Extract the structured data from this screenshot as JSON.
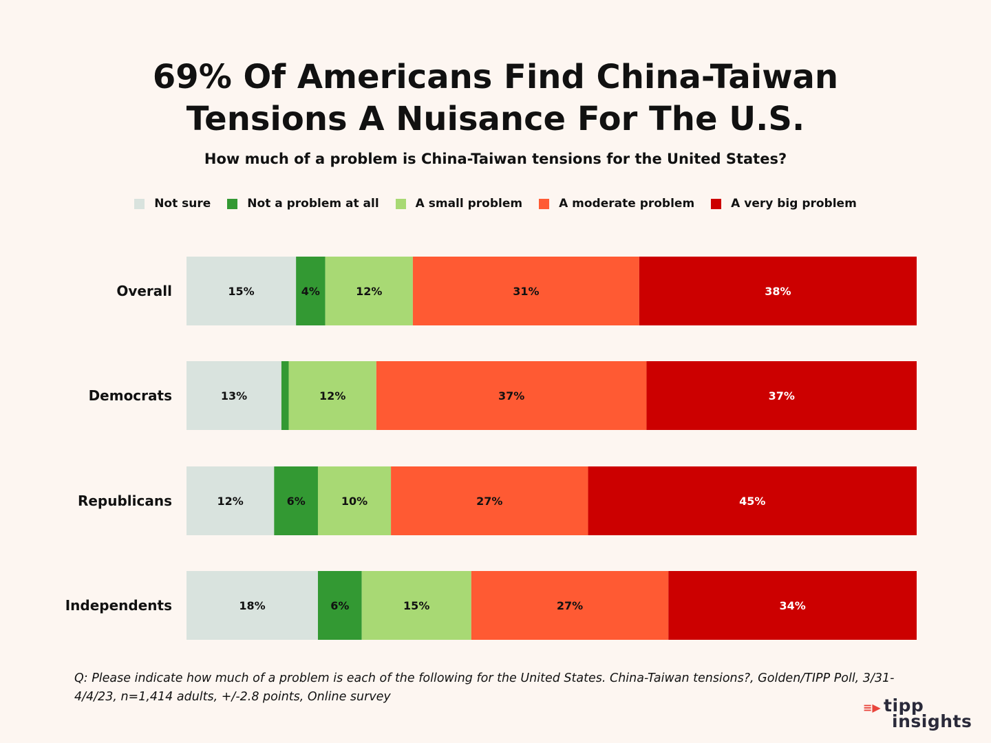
{
  "title": "69% Of Americans Find China-Taiwan Tensions A Nuisance For The U.S.",
  "subtitle": "How much of a problem is China-Taiwan tensions for the United States?",
  "footnote": "Q: Please indicate how much of a problem is each of the following for the United States. China-Taiwan tensions?, Golden/TIPP Poll, 3/31-4/4/23, n=1,414 adults, +/-2.8 points, Online survey",
  "logo": {
    "line1": "tipp",
    "line2": "insights"
  },
  "chart_data": {
    "type": "bar",
    "orientation": "horizontal",
    "stacked": true,
    "categories": [
      "Overall",
      "Democrats",
      "Republicans",
      "Independents"
    ],
    "legend_position": "top",
    "grid": false,
    "series": [
      {
        "name": "Not sure",
        "color": "#d9e3de",
        "label_color": "#111111",
        "values": [
          15,
          13,
          12,
          18
        ],
        "labels": [
          "15%",
          "13%",
          "12%",
          "18%"
        ]
      },
      {
        "name": "Not a problem at all",
        "color": "#339933",
        "label_color": "#111111",
        "values": [
          4,
          1,
          6,
          6
        ],
        "labels": [
          "4%",
          "",
          "6%",
          "6%"
        ]
      },
      {
        "name": "A small problem",
        "color": "#a8d974",
        "label_color": "#111111",
        "values": [
          12,
          12,
          10,
          15
        ],
        "labels": [
          "12%",
          "12%",
          "10%",
          "15%"
        ]
      },
      {
        "name": "A moderate problem",
        "color": "#ff5a33",
        "label_color": "#111111",
        "values": [
          31,
          37,
          27,
          27
        ],
        "labels": [
          "31%",
          "37%",
          "27%",
          "27%"
        ]
      },
      {
        "name": "A very big problem",
        "color": "#cc0000",
        "label_color": "#ffffff",
        "values": [
          38,
          37,
          45,
          34
        ],
        "labels": [
          "38%",
          "37%",
          "45%",
          "34%"
        ]
      }
    ]
  }
}
